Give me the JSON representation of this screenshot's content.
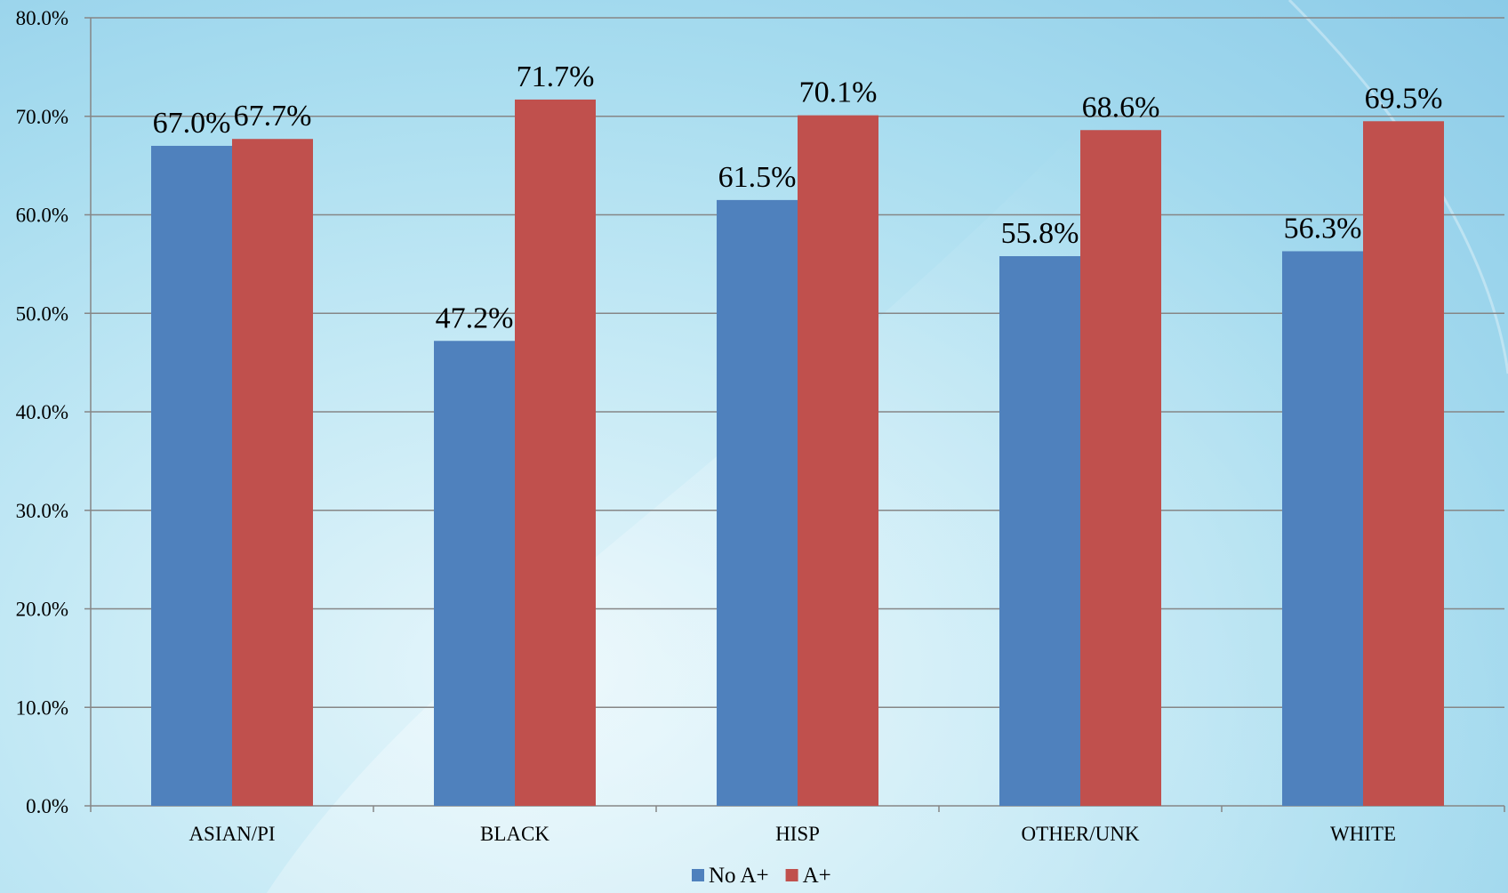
{
  "chart_data": {
    "type": "bar",
    "categories": [
      "ASIAN/PI",
      "BLACK",
      "HISP",
      "OTHER/UNK",
      "WHITE"
    ],
    "series": [
      {
        "name": "No A+",
        "color": "#4f81bd",
        "values": [
          67.0,
          47.2,
          61.5,
          55.8,
          56.3
        ],
        "labels": [
          "67.0%",
          "47.2%",
          "61.5%",
          "55.8%",
          "56.3%"
        ]
      },
      {
        "name": "A+",
        "color": "#c0504d",
        "values": [
          67.7,
          71.7,
          70.1,
          68.6,
          69.5
        ],
        "labels": [
          "67.7%",
          "71.7%",
          "70.1%",
          "68.6%",
          "69.5%"
        ]
      }
    ],
    "yticks": [
      "0.0%",
      "10.0%",
      "20.0%",
      "30.0%",
      "40.0%",
      "50.0%",
      "60.0%",
      "70.0%",
      "80.0%"
    ],
    "ylim": [
      0,
      80
    ],
    "grid": true,
    "legend_position": "bottom"
  }
}
